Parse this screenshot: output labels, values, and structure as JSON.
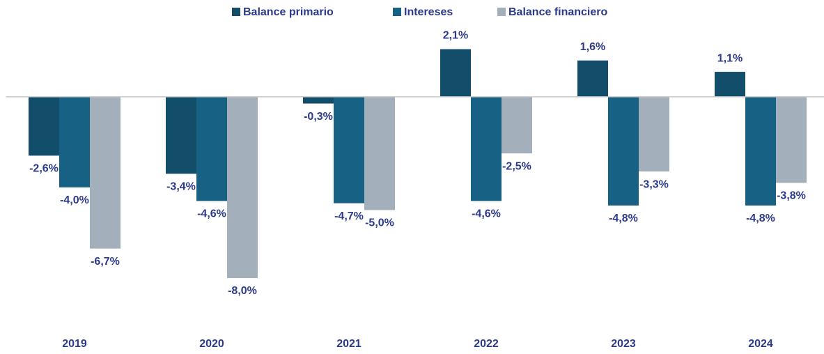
{
  "chart_data": {
    "type": "bar",
    "categories": [
      "2019",
      "2020",
      "2021",
      "2022",
      "2023",
      "2024"
    ],
    "series": [
      {
        "name": "Balance primario",
        "color": "#124e6a",
        "values": [
          -2.6,
          -3.4,
          -0.3,
          2.1,
          1.6,
          1.1
        ],
        "value_labels": [
          "-2,6%",
          "-3,4%",
          "-0,3%",
          "2,1%",
          "1,6%",
          "1,1%"
        ]
      },
      {
        "name": "Intereses",
        "color": "#176184",
        "values": [
          -4.0,
          -4.6,
          -4.7,
          -4.6,
          -4.8,
          -4.8
        ],
        "value_labels": [
          "-4,0%",
          "-4,6%",
          "-4,7%",
          "-4,6%",
          "-4,8%",
          "-4,8%"
        ]
      },
      {
        "name": "Balance financiero",
        "color": "#a3afba",
        "values": [
          -6.7,
          -8.0,
          -5.0,
          -2.5,
          -3.3,
          -3.8
        ],
        "value_labels": [
          "-6,7%",
          "-8,0%",
          "-5,0%",
          "-2,5%",
          "-3,3%",
          "-3,8%"
        ]
      }
    ],
    "ylim": [
      -10,
      3.5
    ],
    "legend": "top"
  }
}
